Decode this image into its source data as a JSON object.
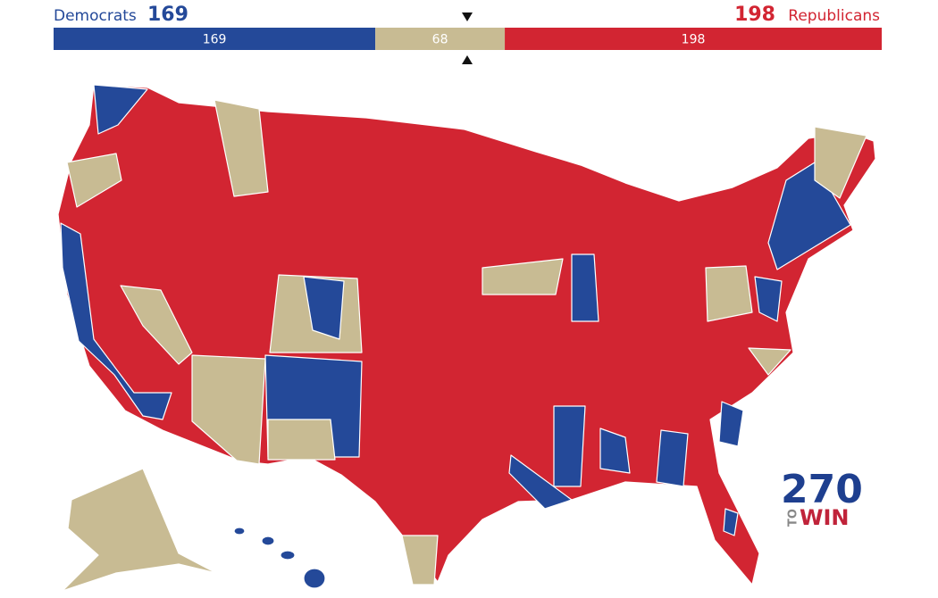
{
  "tally": {
    "democrats": {
      "label": "Democrats",
      "seats": 169,
      "color": "#244999"
    },
    "tossup": {
      "seats": 68,
      "color": "#c8bb93"
    },
    "republicans": {
      "label": "Republicans",
      "seats": 198,
      "color": "#d22532"
    }
  },
  "logo": {
    "number": "270",
    "to": "TO",
    "win": "WIN"
  }
}
